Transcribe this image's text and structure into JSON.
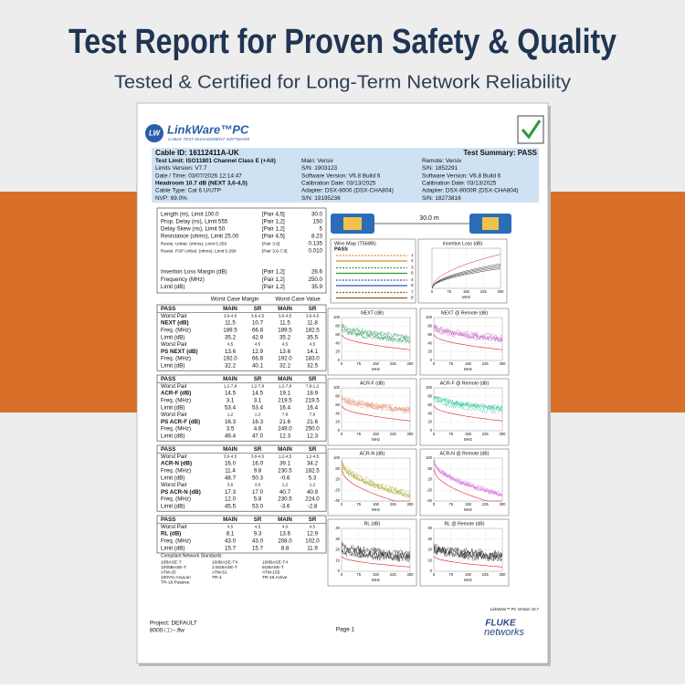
{
  "header": {
    "title": "Test Report for Proven Safety & Quality",
    "subtitle": "Tested & Certified for Long-Term Network Reliability"
  },
  "report": {
    "logo": {
      "badge": "LW",
      "name": "LinkWare™PC",
      "tagline": "CABLE TEST MANAGEMENT SOFTWARE"
    },
    "info": {
      "left": [
        "Cable ID: 16112411A-UK",
        "Test Limit: ISO11801 Channel Class E (+All)",
        "Limits Version: V7.7",
        "Date / Time: 03/07/2026  12:14:47",
        "Headroom 10.7 dB (NEXT 3,6-4,5)",
        "Cable Type: Cat 6 U/UTP",
        "NVP: 69.0%"
      ],
      "middle": [
        "Main: Versiv",
        "S/N: 1903123",
        "Software Version: V6.8 Build 6",
        "Calibration Date: 03/13/2025",
        "Adapter: DSX-8000 (DSX-CHA804)",
        "S/N: 19195236"
      ],
      "right": [
        "Test Summary: PASS",
        "Remote: Versiv",
        "S/N: 1852291",
        "Software Version: V6.8 Build 6",
        "Calibration Date: 03/13/2025",
        "Adapter: DSX-8000R (DSX-CHA804)",
        "S/N: 18273816"
      ]
    },
    "measurements": [
      [
        "Length (m), Limit 100.0",
        "[Pair 4,5]",
        "30.0"
      ],
      [
        "Prop. Delay (ns), Limit 555",
        "[Pair 1,2]",
        "150"
      ],
      [
        "Delay Skew (ns), Limit 50",
        "[Pair 1,2]",
        "5"
      ],
      [
        "Resistance (ohms), Limit 25.00",
        "[Pair 4,5]",
        "8.23"
      ],
      [
        "Resist. Unbal. (ohms), Limit 0.250",
        "[Pair 3,6]",
        "0.135"
      ],
      [
        "Resist. P2P Unbal. (ohms), Limit 0.290",
        "[Pair 3,6-7,8]",
        "0.010"
      ]
    ],
    "insertion_rows": [
      [
        "Insertion Loss Margin (dB)",
        "[Pair 1,2]",
        "26.6"
      ],
      [
        "Frequency (MHz)",
        "[Pair 1,2]",
        "250.0"
      ],
      [
        "Limit (dB)",
        "[Pair 1,2]",
        "35.9"
      ]
    ],
    "margin_headers": [
      "Worst Case Margin",
      "Worst Case Value"
    ],
    "sections": [
      {
        "rows": [
          [
            "PASS",
            "MAIN",
            "SR",
            "MAIN",
            "SR"
          ],
          [
            "Worst Pair",
            "3,6-4,5",
            "3,6-4,5",
            "3,6-4,5",
            "3,6-4,5"
          ],
          [
            "NEXT (dB)",
            "11.5",
            "10.7",
            "11.5",
            "11.8"
          ],
          [
            "Freq. (MHz)",
            "189.5",
            "66.8",
            "189.5",
            "182.5"
          ],
          [
            "Limit (dB)",
            "35.2",
            "42.9",
            "35.2",
            "35.5"
          ],
          [
            "Worst Pair",
            "4,5",
            "4,5",
            "4,5",
            "4,5"
          ],
          [
            "PS NEXT (dB)",
            "13.6",
            "12.9",
            "13.6",
            "14.1"
          ],
          [
            "Freq. (MHz)",
            "192.0",
            "66.8",
            "192.0",
            "183.0"
          ],
          [
            "Limit (dB)",
            "32.2",
            "40.1",
            "32.2",
            "32.5"
          ]
        ]
      },
      {
        "rows": [
          [
            "PASS",
            "MAIN",
            "SR",
            "MAIN",
            "SR"
          ],
          [
            "Worst Pair",
            "1,2-7,8",
            "1,2-7,8",
            "1,2-7,8",
            "7,8-1,2"
          ],
          [
            "ACR-F (dB)",
            "14.5",
            "14.5",
            "19.1",
            "18.9"
          ],
          [
            "Freq. (MHz)",
            "3.1",
            "3.1",
            "219.5",
            "219.5"
          ],
          [
            "Limit (dB)",
            "53.4",
            "53.4",
            "16.4",
            "16.4"
          ],
          [
            "Worst Pair",
            "1,2",
            "1,2",
            "7,8",
            "7,8"
          ],
          [
            "PS ACR-F (dB)",
            "16.3",
            "16.3",
            "21.6",
            "21.6"
          ],
          [
            "Freq. (MHz)",
            "3.5",
            "4.6",
            "249.0",
            "250.0"
          ],
          [
            "Limit (dB)",
            "49.4",
            "47.0",
            "12.3",
            "12.3"
          ]
        ]
      },
      {
        "rows": [
          [
            "PASS",
            "MAIN",
            "SR",
            "MAIN",
            "SR"
          ],
          [
            "Worst Pair",
            "3,6-4,5",
            "3,6-4,5",
            "1,2-4,5",
            "1,2-4,5"
          ],
          [
            "ACR-N (dB)",
            "16.0",
            "16.0",
            "39.1",
            "34.2"
          ],
          [
            "Freq. (MHz)",
            "11.4",
            "9.8",
            "230.5",
            "182.5"
          ],
          [
            "Limit (dB)",
            "48.7",
            "50.3",
            "-0.6",
            "5.3"
          ],
          [
            "Worst Pair",
            "3,6",
            "3,6",
            "1,2",
            "1,2"
          ],
          [
            "PS ACR-N (dB)",
            "17.3",
            "17.0",
            "40.7",
            "40.9"
          ],
          [
            "Freq. (MHz)",
            "12.0",
            "5.8",
            "230.5",
            "224.0"
          ],
          [
            "Limit (dB)",
            "45.5",
            "53.0",
            "-3.6",
            "-2.8"
          ]
        ]
      },
      {
        "rows": [
          [
            "PASS",
            "MAIN",
            "SR",
            "MAIN",
            "SR"
          ],
          [
            "Worst Pair",
            "4,5",
            "4,5",
            "4,5",
            "4,5"
          ],
          [
            "RL (dB)",
            "8.1",
            "9.3",
            "13.6",
            "12.9"
          ],
          [
            "Freq. (MHz)",
            "43.0",
            "43.0",
            "208.0",
            "102.0"
          ],
          [
            "Limit (dB)",
            "15.7",
            "15.7",
            "8.8",
            "11.9"
          ]
        ]
      }
    ],
    "standards": {
      "title": "Compliant Network Standards:",
      "items": [
        "10BASE-T",
        "100BASE-TX",
        "100BASE-T4",
        "1000BASE-T",
        "2.5GBASE-T",
        "5GBASE-T",
        "ATM-25",
        "ATM-51",
        "ATM-155",
        "100VG-AnyLan",
        "TR-4",
        "TR-16 Active",
        "TR-16 Passive"
      ]
    },
    "length": "30.0 m",
    "wire_map": {
      "title": "Wire Map (T568B)",
      "result": "PASS",
      "pins": [
        "1",
        "2",
        "3",
        "6",
        "4",
        "5",
        "7",
        "8"
      ]
    },
    "xticks": [
      "0",
      "75",
      "150",
      "225",
      "300"
    ],
    "xlabel": "MHz",
    "insertion_loss": {
      "title": "Insertion Loss (dB)"
    },
    "plots": [
      {
        "title": "NEXT (dB)",
        "color": "#2e9a62",
        "yticks": [
          "100",
          "80",
          "60",
          "40",
          "20",
          "0"
        ]
      },
      {
        "title": "NEXT @ Remote (dB)",
        "color": "#c45ac8",
        "yticks": [
          "100",
          "80",
          "60",
          "40",
          "20",
          "0"
        ]
      },
      {
        "title": "ACR-F (dB)",
        "color": "#e8896a",
        "yticks": [
          "100",
          "80",
          "60",
          "40",
          "20",
          "0"
        ]
      },
      {
        "title": "ACR-F @ Remote (dB)",
        "color": "#27c49c",
        "yticks": [
          "100",
          "80",
          "60",
          "40",
          "20",
          "0"
        ]
      },
      {
        "title": "ACR-N (dB)",
        "color": "#a6a21e",
        "yticks": [
          "100",
          "60",
          "20",
          "-20",
          "-40"
        ]
      },
      {
        "title": "ACR-N @ Remote (dB)",
        "color": "#d264d6",
        "yticks": [
          "100",
          "60",
          "20",
          "-20",
          "-40"
        ]
      },
      {
        "title": "RL (dB)",
        "color": "#222222",
        "yticks": [
          "40",
          "30",
          "20",
          "10",
          "0"
        ]
      },
      {
        "title": "RL @ Remote (dB)",
        "color": "#222222",
        "yticks": [
          "40",
          "30",
          "20",
          "10",
          "0"
        ]
      }
    ],
    "footer": {
      "project": "Project: DEFAULT",
      "file": "8000-□□--.flw",
      "page": "Page 1",
      "version": "LinkWare™ PC Version 10.7",
      "brand": "FLUKE",
      "brand_sub": "networks"
    }
  }
}
